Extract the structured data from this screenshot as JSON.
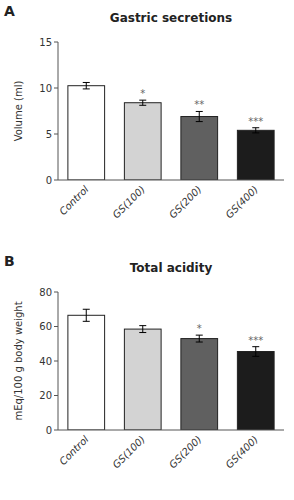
{
  "chart_data": [
    {
      "type": "bar",
      "title": "Gastric secretions",
      "panel_label": "A",
      "y_label": "Volume (ml)",
      "categories": [
        "Control",
        "GS(100)",
        "GS(200)",
        "GS(400)"
      ],
      "values": [
        10.25,
        8.4,
        6.9,
        5.4
      ],
      "errors": [
        0.35,
        0.28,
        0.55,
        0.28
      ],
      "colors": [
        "#ffffff",
        "#d3d3d3",
        "#606060",
        "#1c1c1c"
      ],
      "annotations": [
        {
          "x": "GS(100)",
          "text": "*"
        },
        {
          "x": "GS(200)",
          "text": "**"
        },
        {
          "x": "GS(400)",
          "text": "***"
        }
      ],
      "ylim": [
        0,
        15
      ],
      "yticks": [
        0,
        5,
        10,
        15
      ],
      "grid": false
    },
    {
      "type": "bar",
      "title": "Total acidity",
      "panel_label": "B",
      "y_label": "mEq/100 g body weight",
      "categories": [
        "Control",
        "GS(100)",
        "GS(200)",
        "GS(400)"
      ],
      "values": [
        66.5,
        58.5,
        53.0,
        45.5
      ],
      "errors": [
        3.5,
        2.0,
        2.0,
        2.8
      ],
      "colors": [
        "#ffffff",
        "#d3d3d3",
        "#606060",
        "#1c1c1c"
      ],
      "annotations": [
        {
          "x": "GS(200)",
          "text": "*"
        },
        {
          "x": "GS(400)",
          "text": "***"
        }
      ],
      "ylim": [
        0,
        80
      ],
      "yticks": [
        0,
        20,
        40,
        60,
        80
      ],
      "grid": false
    }
  ]
}
